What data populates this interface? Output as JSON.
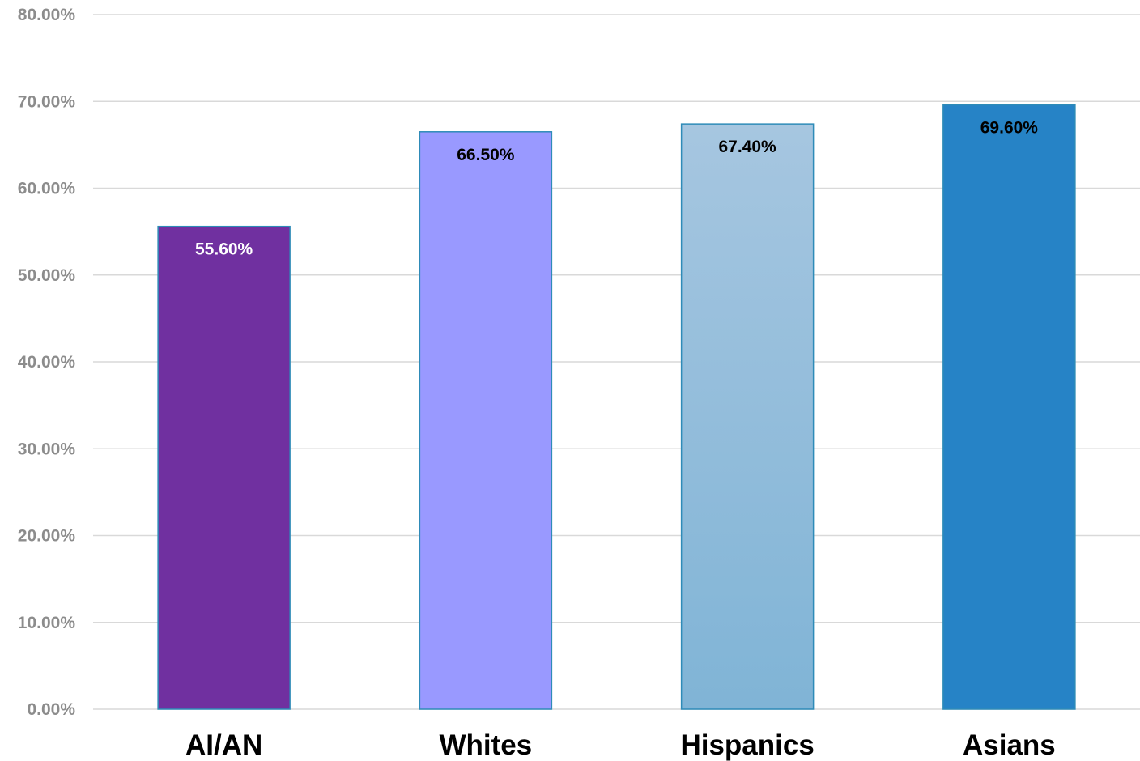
{
  "chart_data": {
    "type": "bar",
    "categories": [
      "AI/AN",
      "Whites",
      "Hispanics",
      "Asians"
    ],
    "values": [
      55.6,
      66.5,
      67.4,
      69.6
    ],
    "value_labels": [
      "55.60%",
      "66.50%",
      "67.40%",
      "69.60%"
    ],
    "ylim": [
      0,
      80
    ],
    "yticks": [
      0,
      10,
      20,
      30,
      40,
      50,
      60,
      70,
      80
    ],
    "ytick_labels": [
      "0.00%",
      "10.00%",
      "20.00%",
      "30.00%",
      "40.00%",
      "50.00%",
      "60.00%",
      "70.00%",
      "80.00%"
    ],
    "grid": true,
    "legend": "none",
    "bar_colors": [
      {
        "top": "#7030a0",
        "bottom": "#7030a0",
        "stroke": "#2e8bb8",
        "label_color": "#ffffff"
      },
      {
        "top": "#9999ff",
        "bottom": "#9999ff",
        "stroke": "#2e8bb8",
        "label_color": "#000000"
      },
      {
        "top": "#a6c6e0",
        "bottom": "#80b4d6",
        "stroke": "#2e8bb8",
        "label_color": "#000000"
      },
      {
        "top": "#2683c6",
        "bottom": "#2683c6",
        "stroke": "#2e8bb8",
        "label_color": "#000000"
      }
    ]
  }
}
